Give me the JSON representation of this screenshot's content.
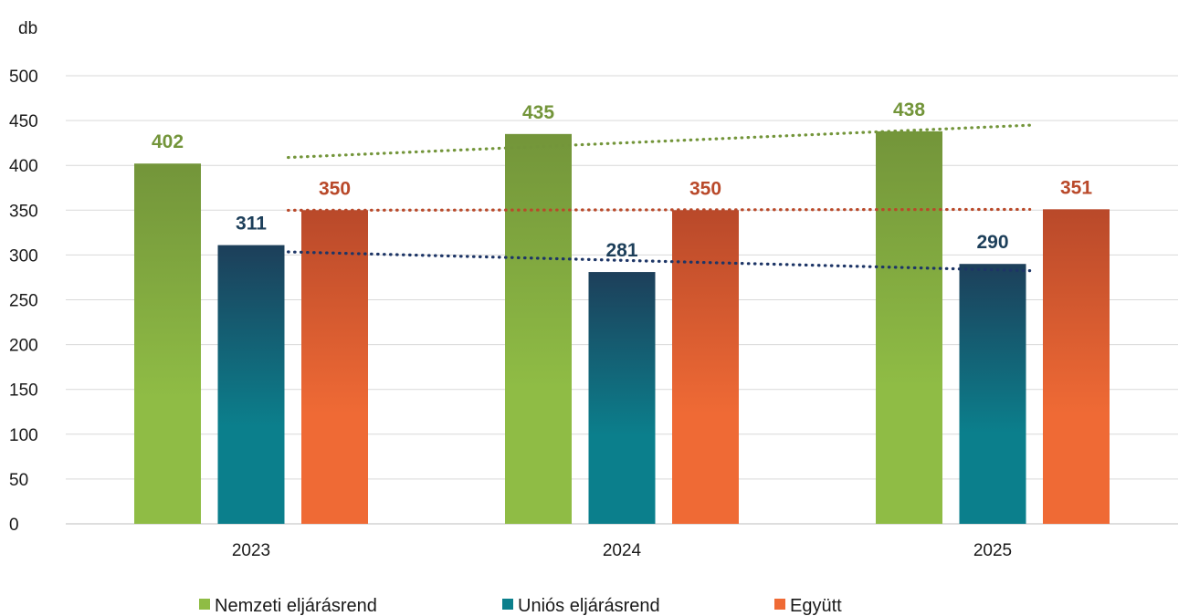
{
  "chart_data": {
    "type": "bar",
    "ylabel": "db",
    "ylim": [
      0,
      500
    ],
    "y_ticks": [
      "0",
      "50",
      "100",
      "150",
      "200",
      "250",
      "300",
      "350",
      "400",
      "450",
      "500"
    ],
    "categories": [
      "2023",
      "2024",
      "2025"
    ],
    "series": [
      {
        "name": "Nemzeti eljárásrend",
        "values": [
          402,
          435,
          438
        ],
        "color": "#8fbc45",
        "color_top": "#73953a",
        "trendline": true
      },
      {
        "name": "Uniós eljárásrend",
        "values": [
          311,
          281,
          290
        ],
        "color": "#0b7f8c",
        "color_top": "#1d3f5a",
        "trendline": true
      },
      {
        "name": "Együtt",
        "values": [
          350,
          350,
          351
        ],
        "color": "#ef6a35",
        "color_top": "#b9492a",
        "trendline": true
      }
    ],
    "data_labels": true,
    "grid": true,
    "legend_position": "bottom"
  }
}
